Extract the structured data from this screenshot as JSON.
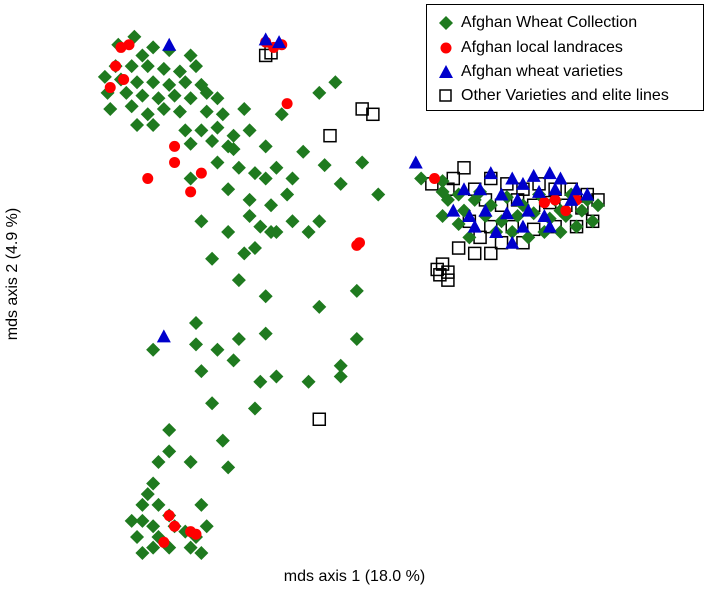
{
  "chart_data": {
    "type": "scatter",
    "xlabel": "mds axis 1 (18.0 %)",
    "ylabel": "mds axis 2 (4.9 %)",
    "xlim": [
      0,
      100
    ],
    "ylim": [
      0,
      100
    ],
    "axes_visible": false,
    "grid": false,
    "legend_position": "top-right",
    "series": [
      {
        "name": "Afghan Wheat Collection",
        "marker": "diamond",
        "color": "#1f7a1f",
        "points": [
          [
            13.5,
            96.5
          ],
          [
            10.5,
            95
          ],
          [
            15,
            93
          ],
          [
            17,
            94.5
          ],
          [
            20,
            94
          ],
          [
            24,
            93
          ],
          [
            10,
            91
          ],
          [
            13,
            91
          ],
          [
            16,
            91
          ],
          [
            19,
            90.5
          ],
          [
            22,
            90
          ],
          [
            25,
            91
          ],
          [
            8,
            89
          ],
          [
            11,
            88.5
          ],
          [
            14,
            88
          ],
          [
            17,
            88
          ],
          [
            20,
            87.5
          ],
          [
            23,
            88
          ],
          [
            26,
            87.5
          ],
          [
            8.5,
            86
          ],
          [
            12,
            86
          ],
          [
            15,
            85.5
          ],
          [
            18,
            85
          ],
          [
            21,
            85.5
          ],
          [
            24,
            85
          ],
          [
            27,
            86
          ],
          [
            29,
            85
          ],
          [
            9,
            83
          ],
          [
            13,
            83.5
          ],
          [
            16,
            82
          ],
          [
            19,
            83
          ],
          [
            22,
            82.5
          ],
          [
            30,
            82
          ],
          [
            27,
            82.5
          ],
          [
            34,
            83
          ],
          [
            41,
            82
          ],
          [
            51,
            88
          ],
          [
            48,
            86
          ],
          [
            14,
            80
          ],
          [
            17,
            80
          ],
          [
            23,
            79
          ],
          [
            26,
            79
          ],
          [
            29,
            79.5
          ],
          [
            32,
            78
          ],
          [
            35,
            79
          ],
          [
            24,
            76.5
          ],
          [
            28,
            77
          ],
          [
            31,
            76
          ],
          [
            32,
            75.5
          ],
          [
            38,
            76
          ],
          [
            45,
            75
          ],
          [
            56,
            73
          ],
          [
            29,
            73
          ],
          [
            33,
            72
          ],
          [
            36,
            71
          ],
          [
            40,
            72
          ],
          [
            24,
            70
          ],
          [
            31,
            68
          ],
          [
            38,
            70
          ],
          [
            43,
            70
          ],
          [
            49,
            72.5
          ],
          [
            35,
            66
          ],
          [
            39,
            65
          ],
          [
            42,
            67
          ],
          [
            35,
            63
          ],
          [
            26,
            62
          ],
          [
            31,
            60
          ],
          [
            37,
            61
          ],
          [
            40,
            60
          ],
          [
            43,
            62
          ],
          [
            46,
            60
          ],
          [
            52,
            69
          ],
          [
            59,
            67
          ],
          [
            28,
            55
          ],
          [
            34,
            56
          ],
          [
            36,
            57
          ],
          [
            39,
            60
          ],
          [
            48,
            62
          ],
          [
            33,
            51
          ],
          [
            38,
            48
          ],
          [
            25,
            43
          ],
          [
            48,
            46
          ],
          [
            55,
            49
          ],
          [
            17,
            38
          ],
          [
            25,
            39
          ],
          [
            29,
            38
          ],
          [
            33,
            40
          ],
          [
            38,
            41
          ],
          [
            32,
            36
          ],
          [
            40,
            33
          ],
          [
            52,
            35
          ],
          [
            55,
            40
          ],
          [
            26,
            34
          ],
          [
            28,
            28
          ],
          [
            37,
            32
          ],
          [
            46,
            32
          ],
          [
            36,
            27
          ],
          [
            52,
            33
          ],
          [
            20,
            23
          ],
          [
            30,
            21
          ],
          [
            20,
            19
          ],
          [
            18,
            17
          ],
          [
            24,
            17
          ],
          [
            31,
            16
          ],
          [
            17,
            13
          ],
          [
            16,
            11
          ],
          [
            15,
            9
          ],
          [
            18,
            9
          ],
          [
            20,
            7
          ],
          [
            26,
            9
          ],
          [
            13,
            6
          ],
          [
            15,
            6
          ],
          [
            17,
            5
          ],
          [
            21,
            5
          ],
          [
            25,
            3
          ],
          [
            27,
            5
          ],
          [
            14,
            3
          ],
          [
            18,
            3
          ],
          [
            23,
            4
          ],
          [
            17,
            1
          ],
          [
            20,
            1
          ],
          [
            24,
            1
          ],
          [
            26,
            0
          ],
          [
            15,
            0
          ],
          [
            67,
            70
          ],
          [
            71,
            67.5
          ],
          [
            71,
            69.5
          ],
          [
            74,
            67
          ],
          [
            78,
            67.5
          ],
          [
            75,
            64
          ],
          [
            71,
            63
          ],
          [
            74,
            61.5
          ],
          [
            76,
            59
          ],
          [
            77,
            66
          ],
          [
            80,
            65
          ],
          [
            83,
            66.5
          ],
          [
            86,
            65
          ],
          [
            89,
            67
          ],
          [
            92,
            66
          ],
          [
            95,
            67
          ],
          [
            98,
            66
          ],
          [
            79,
            63
          ],
          [
            82,
            62
          ],
          [
            85,
            63
          ],
          [
            88,
            63.5
          ],
          [
            91,
            62.5
          ],
          [
            94,
            63
          ],
          [
            97,
            64
          ],
          [
            100,
            65
          ],
          [
            81,
            60
          ],
          [
            84,
            60
          ],
          [
            87,
            59
          ],
          [
            90,
            60
          ],
          [
            93,
            60
          ],
          [
            96,
            61
          ],
          [
            99,
            62
          ],
          [
            72,
            66
          ],
          [
            93,
            64
          ]
        ]
      },
      {
        "name": "Afghan local landraces",
        "marker": "circle",
        "color": "#ff0000",
        "points": [
          [
            11,
            94.5
          ],
          [
            12.5,
            95
          ],
          [
            10,
            91
          ],
          [
            11.5,
            88.5
          ],
          [
            9,
            87
          ],
          [
            38,
            95.5
          ],
          [
            39.5,
            94.5
          ],
          [
            41,
            95
          ],
          [
            42,
            84
          ],
          [
            21,
            76
          ],
          [
            21,
            73
          ],
          [
            16,
            70
          ],
          [
            26,
            71
          ],
          [
            24,
            67.5
          ],
          [
            55,
            57.5
          ],
          [
            55.5,
            58
          ],
          [
            20,
            7
          ],
          [
            21,
            5
          ],
          [
            24,
            4
          ],
          [
            25,
            3.5
          ],
          [
            19,
            2
          ],
          [
            69.5,
            70
          ],
          [
            90,
            65.5
          ],
          [
            92,
            66
          ],
          [
            96,
            66
          ],
          [
            94,
            64
          ],
          [
            90,
            65.5
          ]
        ]
      },
      {
        "name": "Afghan wheat varieties",
        "marker": "triangle",
        "color": "#0000cc",
        "points": [
          [
            20,
            95
          ],
          [
            38,
            96
          ],
          [
            40.5,
            95.5
          ],
          [
            19,
            40.5
          ],
          [
            66,
            73
          ],
          [
            75,
            68
          ],
          [
            80,
            71
          ],
          [
            84,
            70
          ],
          [
            86,
            69
          ],
          [
            88,
            70.5
          ],
          [
            91,
            71
          ],
          [
            93,
            70
          ],
          [
            96,
            68
          ],
          [
            78,
            68
          ],
          [
            82,
            67
          ],
          [
            85,
            66
          ],
          [
            89,
            67.5
          ],
          [
            92,
            68
          ],
          [
            95,
            66
          ],
          [
            98,
            67
          ],
          [
            76,
            63
          ],
          [
            79,
            64
          ],
          [
            83,
            63.5
          ],
          [
            87,
            64
          ],
          [
            90,
            63
          ],
          [
            77,
            61
          ],
          [
            81,
            60
          ],
          [
            86,
            61
          ],
          [
            91,
            61
          ],
          [
            84,
            58
          ],
          [
            73,
            64
          ]
        ]
      },
      {
        "name": "Other Varieties and elite lines",
        "marker": "square",
        "color": "#000000",
        "points": [
          [
            39,
            93.5
          ],
          [
            38,
            93
          ],
          [
            56,
            83
          ],
          [
            58,
            82
          ],
          [
            50,
            78
          ],
          [
            73,
            70
          ],
          [
            75,
            72
          ],
          [
            69,
            69
          ],
          [
            72,
            68
          ],
          [
            77,
            68
          ],
          [
            80,
            70
          ],
          [
            83,
            69
          ],
          [
            86,
            68
          ],
          [
            89,
            69
          ],
          [
            92,
            68
          ],
          [
            95,
            68
          ],
          [
            98,
            67
          ],
          [
            100,
            66
          ],
          [
            79,
            66
          ],
          [
            82,
            65
          ],
          [
            85,
            66
          ],
          [
            88,
            65
          ],
          [
            91,
            65.5
          ],
          [
            94,
            65
          ],
          [
            97,
            64.5
          ],
          [
            76,
            62
          ],
          [
            80,
            61
          ],
          [
            84,
            61
          ],
          [
            88,
            60.5
          ],
          [
            92,
            61
          ],
          [
            96,
            61
          ],
          [
            99,
            62
          ],
          [
            78,
            59
          ],
          [
            82,
            58
          ],
          [
            86,
            58
          ],
          [
            74,
            57
          ],
          [
            77,
            56
          ],
          [
            80,
            56
          ],
          [
            71,
            54
          ],
          [
            72,
            51
          ],
          [
            72,
            52.5
          ],
          [
            70,
            53
          ],
          [
            70.5,
            52
          ],
          [
            48,
            25
          ]
        ]
      }
    ]
  }
}
